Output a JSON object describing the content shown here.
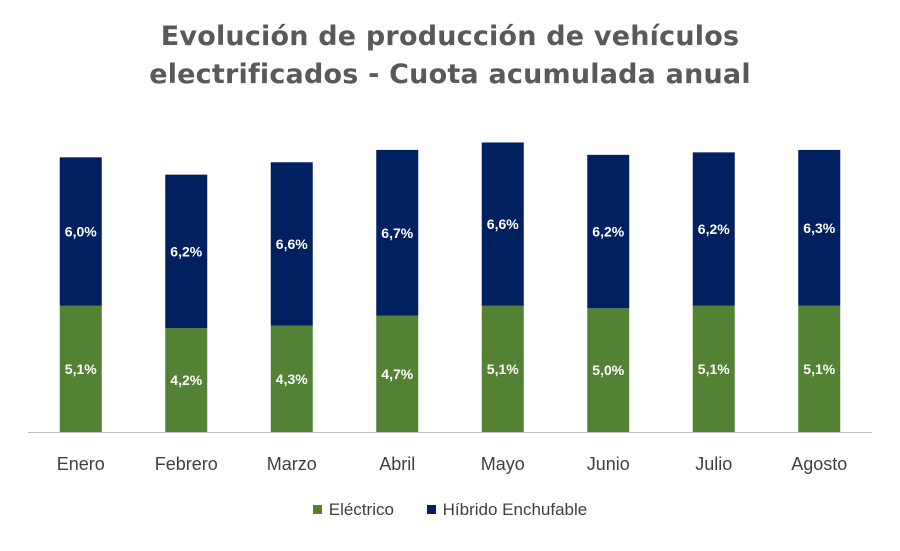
{
  "chart_data": {
    "type": "bar",
    "stacked": true,
    "title": [
      "Evolución de producción de vehículos",
      "electrificados - Cuota acumulada anual"
    ],
    "categories": [
      "Enero",
      "Febrero",
      "Marzo",
      "Abril",
      "Mayo",
      "Junio",
      "Julio",
      "Agosto"
    ],
    "series": [
      {
        "name": "Eléctrico",
        "color": "#548235",
        "values": [
          5.1,
          4.2,
          4.3,
          4.7,
          5.1,
          5.0,
          5.1,
          5.1
        ],
        "labels": [
          "5,1%",
          "4,2%",
          "4,3%",
          "4,7%",
          "5,1%",
          "5,0%",
          "5,1%",
          "5,1%"
        ]
      },
      {
        "name": "Híbrido Enchufable",
        "color": "#002060",
        "values": [
          6.0,
          6.2,
          6.6,
          6.7,
          6.6,
          6.2,
          6.2,
          6.3
        ],
        "labels": [
          "6,0%",
          "6,2%",
          "6,6%",
          "6,7%",
          "6,6%",
          "6,2%",
          "6,2%",
          "6,3%"
        ]
      }
    ],
    "xlabel": "",
    "ylabel": "",
    "ylim": [
      0,
      11.8
    ],
    "grid": false,
    "legend_position": "bottom"
  }
}
